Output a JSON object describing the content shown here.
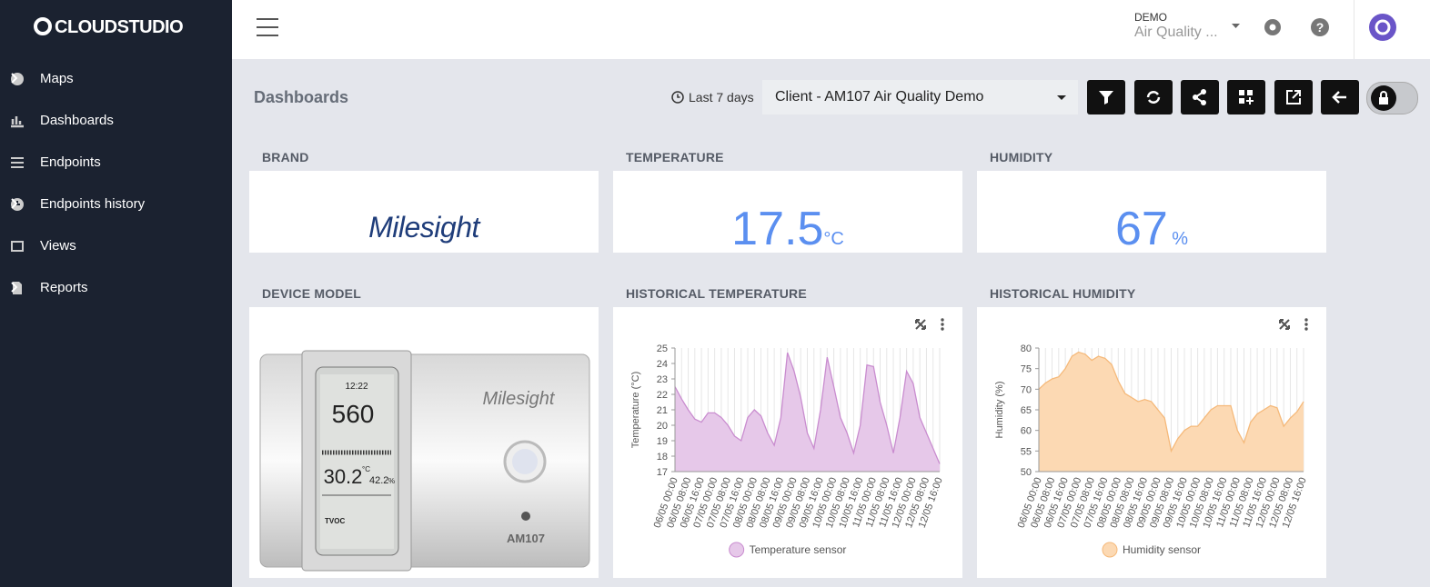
{
  "brand": "CLOUDSTUDIO",
  "sidebar": {
    "items": [
      "Maps",
      "Dashboards",
      "Endpoints",
      "Endpoints history",
      "Views",
      "Reports"
    ]
  },
  "header": {
    "org": "DEMO",
    "account": "Air Quality ..."
  },
  "toolbar": {
    "title": "Dashboards",
    "range": "Last 7 days",
    "dashboard": "Client - AM107 Air Quality Demo"
  },
  "widgets": {
    "brand": {
      "title": "BRAND",
      "logo": "Milesight"
    },
    "temperature": {
      "title": "TEMPERATURE",
      "value": 17.5,
      "unit": "°C"
    },
    "humidity": {
      "title": "HUMIDITY",
      "value": 67,
      "unit": "%"
    },
    "device": {
      "title": "DEVICE MODEL",
      "logo": "Milesight",
      "model": "AM107",
      "lcd": {
        "time": "12:22",
        "co2": "560",
        "temp": "30.2",
        "temp_unit": "°C",
        "hum": "42.2",
        "hum_unit": "%",
        "tvoc": "TVOC"
      }
    }
  },
  "chart_data": [
    {
      "type": "area",
      "title": "HISTORICAL TEMPERATURE",
      "y_label": "Temperature (°C)",
      "categories": [
        "06/05 00:00",
        null,
        "06/05 08:00",
        null,
        "06/05 16:00",
        null,
        "07/05 00:00",
        null,
        "07/05 08:00",
        null,
        "07/05 16:00",
        null,
        "08/05 00:00",
        null,
        "08/05 08:00",
        null,
        "08/05 16:00",
        null,
        "09/05 00:00",
        null,
        "09/05 08:00",
        null,
        "09/05 16:00",
        null,
        "10/05 00:00",
        null,
        "10/05 08:00",
        null,
        "10/05 16:00",
        null,
        "11/05 00:00",
        null,
        "11/05 08:00",
        null,
        "11/05 16:00",
        null,
        "12/05 00:00",
        null,
        "12/05 08:00",
        null,
        "12/05 16:00"
      ],
      "series": [
        {
          "name": "Temperature sensor",
          "color": "#c98ccf",
          "fill": "#e6c8e9",
          "values": [
            22.5,
            21.7,
            21,
            20.4,
            20.2,
            20.8,
            20.8,
            20.5,
            20.0,
            19.3,
            19.0,
            20.5,
            21.0,
            20.6,
            19.5,
            18.7,
            20.5,
            24.7,
            23.5,
            21.8,
            19.5,
            18.5,
            21,
            24.4,
            22.5,
            20.5,
            19.5,
            18.2,
            20,
            23.9,
            23.8,
            21.5,
            20,
            18.2,
            20.5,
            23.5,
            22.7,
            20.5,
            19.5,
            18.5,
            17.5
          ]
        }
      ],
      "ylim": [
        17,
        25
      ],
      "yticks": [
        17,
        18,
        19,
        20,
        21,
        22,
        23,
        24,
        25
      ],
      "grid": true
    },
    {
      "type": "area",
      "title": "HISTORICAL HUMIDITY",
      "y_label": "Humidity (%)",
      "categories": [
        "06/05 00:00",
        null,
        "06/05 08:00",
        null,
        "06/05 16:00",
        null,
        "07/05 00:00",
        null,
        "07/05 08:00",
        null,
        "07/05 16:00",
        null,
        "08/05 00:00",
        null,
        "08/05 08:00",
        null,
        "08/05 16:00",
        null,
        "09/05 00:00",
        null,
        "09/05 08:00",
        null,
        "09/05 16:00",
        null,
        "10/05 00:00",
        null,
        "10/05 08:00",
        null,
        "10/05 16:00",
        null,
        "11/05 00:00",
        null,
        "11/05 08:00",
        null,
        "11/05 16:00",
        null,
        "12/05 00:00",
        null,
        "12/05 08:00",
        null,
        "12/05 16:00"
      ],
      "series": [
        {
          "name": "Humidity sensor",
          "color": "#f5b97a",
          "fill": "#fcd9b3",
          "values": [
            70,
            71.5,
            72.5,
            73,
            75,
            78,
            79,
            78.5,
            77,
            78,
            77.5,
            76,
            72,
            69,
            68,
            67,
            67.5,
            67,
            65,
            63,
            55,
            58,
            60,
            61,
            61,
            63,
            65,
            66,
            66,
            66,
            60,
            57,
            62,
            64,
            65,
            66,
            65.5,
            61,
            63,
            64.5,
            67
          ]
        }
      ],
      "ylim": [
        50,
        80
      ],
      "yticks": [
        50,
        55,
        60,
        65,
        70,
        75,
        80
      ],
      "grid": true
    }
  ]
}
